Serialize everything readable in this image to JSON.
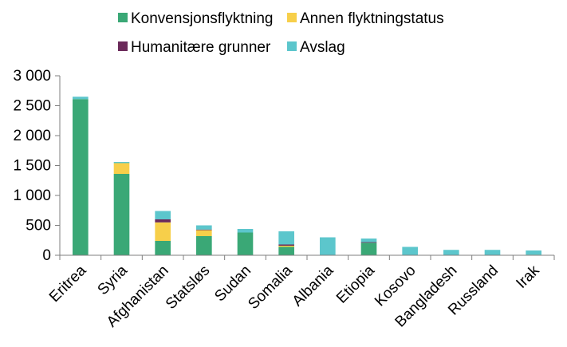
{
  "chart_data": {
    "type": "bar",
    "stacked": true,
    "title": "",
    "xlabel": "",
    "ylabel": "",
    "ylim": [
      0,
      3000
    ],
    "yticks": [
      0,
      500,
      1000,
      1500,
      2000,
      2500,
      3000
    ],
    "ytick_labels": [
      "0",
      "500",
      "1 000",
      "1 500",
      "2 000",
      "2 500",
      "3 000"
    ],
    "grid": false,
    "legend_position": "top",
    "categories": [
      "Eritrea",
      "Syria",
      "Afghanistan",
      "Statsløs",
      "Sudan",
      "Somalia",
      "Albania",
      "Etiopia",
      "Kosovo",
      "Bangladesh",
      "Russland",
      "Irak"
    ],
    "series": [
      {
        "name": "Konvensjonsflyktning",
        "color": "#3aa876",
        "values": [
          2610,
          1360,
          240,
          320,
          380,
          140,
          0,
          210,
          0,
          0,
          0,
          10
        ]
      },
      {
        "name": "Annen flyktningstatus",
        "color": "#f7cf4a",
        "values": [
          0,
          180,
          310,
          100,
          0,
          20,
          0,
          0,
          0,
          0,
          0,
          0
        ]
      },
      {
        "name": "Humanitære grunner",
        "color": "#6b2a5a",
        "values": [
          0,
          0,
          50,
          10,
          0,
          20,
          0,
          10,
          0,
          0,
          0,
          0
        ]
      },
      {
        "name": "Avslag",
        "color": "#5cc6cc",
        "values": [
          40,
          20,
          140,
          70,
          60,
          220,
          300,
          60,
          140,
          90,
          90,
          70
        ]
      }
    ]
  }
}
